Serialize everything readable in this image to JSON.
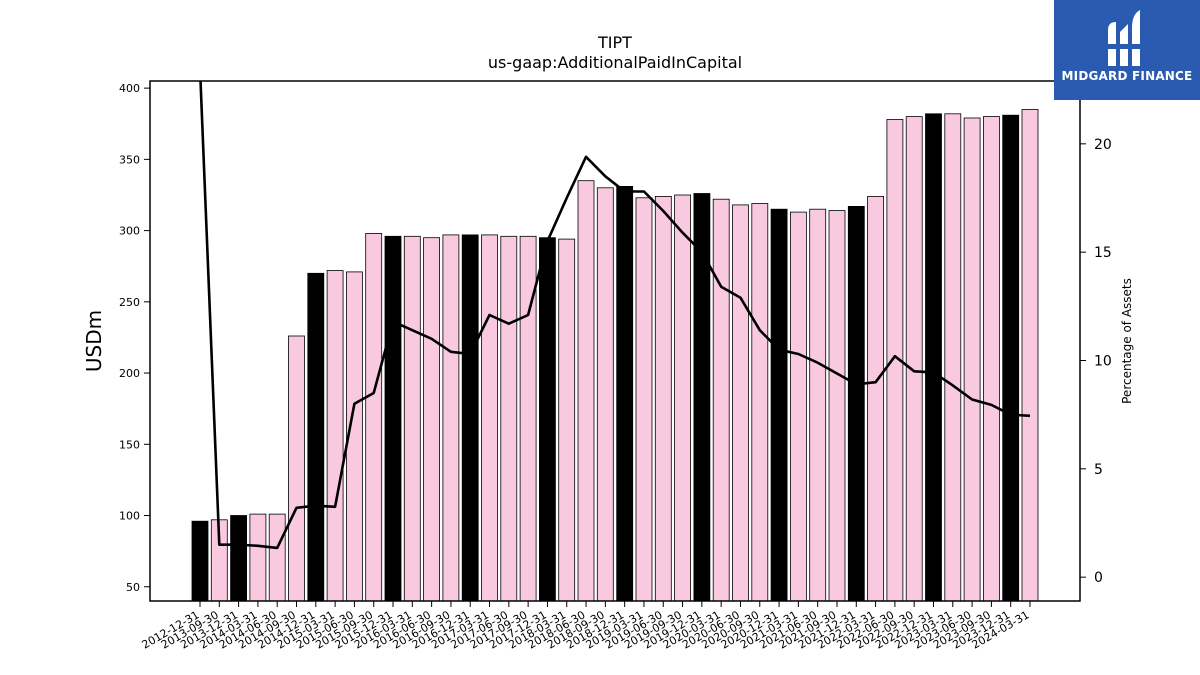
{
  "brand": {
    "name": "MIDGARD FINANCE",
    "color": "#2a5bb0"
  },
  "chart_data": {
    "type": "bar",
    "title": "TIPT",
    "subtitle": "us-gaap:AdditionalPaidInCapital",
    "ylabel": "USDm",
    "y2label": "Percentage of Assets",
    "ylim": [
      40,
      405
    ],
    "y2lim": [
      -1.1,
      22.9
    ],
    "yticks": [
      50,
      100,
      150,
      200,
      250,
      300,
      350,
      400
    ],
    "y2ticks": [
      0,
      5,
      10,
      15,
      20
    ],
    "grid": false,
    "colors": {
      "annual_bar": "#000000",
      "quarter_bar": "#f9c9e0",
      "line": "#000000"
    },
    "categories": [
      "2012-12-31",
      "2013-09-30",
      "2013-12-31",
      "2014-03-31",
      "2014-06-30",
      "2014-09-30",
      "2014-12-31",
      "2015-03-31",
      "2015-06-30",
      "2015-09-30",
      "2015-12-31",
      "2016-03-31",
      "2016-06-30",
      "2016-09-30",
      "2016-12-31",
      "2017-03-31",
      "2017-06-30",
      "2017-09-30",
      "2017-12-31",
      "2018-03-31",
      "2018-06-30",
      "2018-09-30",
      "2018-12-31",
      "2019-03-31",
      "2019-06-30",
      "2019-09-30",
      "2019-12-31",
      "2020-03-31",
      "2020-06-30",
      "2020-09-30",
      "2020-12-31",
      "2021-03-31",
      "2021-06-30",
      "2021-09-30",
      "2021-12-31",
      "2022-03-31",
      "2022-06-30",
      "2022-09-30",
      "2022-12-31",
      "2023-03-31",
      "2023-06-30",
      "2023-09-30",
      "2023-12-31",
      "2024-03-31"
    ],
    "series": [
      {
        "kind": "bar",
        "values": [
          96,
          97,
          100,
          101,
          101,
          226,
          270,
          272,
          271,
          298,
          296,
          296,
          295,
          297,
          297,
          297,
          296,
          296,
          295,
          294,
          335,
          330,
          331,
          323,
          324,
          325,
          326,
          322,
          318,
          319,
          315,
          313,
          315,
          314,
          317,
          324,
          378,
          380,
          382,
          382,
          379,
          380,
          381,
          385
        ],
        "highlight": [
          true,
          false,
          true,
          false,
          false,
          false,
          true,
          false,
          false,
          false,
          true,
          false,
          false,
          false,
          true,
          false,
          false,
          false,
          true,
          false,
          false,
          false,
          true,
          false,
          false,
          false,
          true,
          false,
          false,
          false,
          true,
          false,
          false,
          false,
          true,
          false,
          false,
          false,
          true,
          false,
          false,
          false,
          true,
          false
        ]
      },
      {
        "kind": "line",
        "axis": "right",
        "values": [
          23.5,
          1.5,
          1.5,
          1.45,
          1.35,
          3.2,
          3.3,
          3.25,
          8.0,
          8.5,
          11.8,
          11.4,
          11.0,
          10.4,
          10.3,
          12.1,
          11.7,
          12.1,
          15.5,
          17.5,
          19.4,
          18.5,
          17.8,
          17.8,
          16.9,
          15.9,
          15.0,
          13.4,
          12.9,
          11.4,
          10.5,
          10.3,
          9.9,
          9.4,
          8.9,
          9.0,
          10.2,
          9.5,
          9.45,
          8.85,
          8.2,
          7.95,
          7.5,
          7.45
        ]
      }
    ]
  }
}
